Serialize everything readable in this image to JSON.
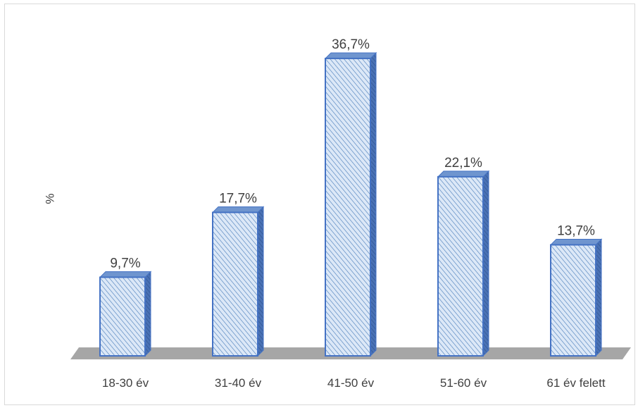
{
  "chart_data": {
    "type": "bar",
    "title": "",
    "xlabel": "",
    "ylabel": "%",
    "categories": [
      "18-30 év",
      "31-40 év",
      "41-50 év",
      "51-60 év",
      "61 év felett"
    ],
    "values": [
      9.7,
      17.7,
      36.7,
      22.1,
      13.7
    ],
    "data_labels": [
      "9,7%",
      "17,7%",
      "36,7%",
      "22,1%",
      "13,7%"
    ],
    "ylim": [
      0,
      40
    ],
    "grid": false,
    "legend": "none",
    "bar_style": "3d-column-hatched",
    "colors": {
      "bar_fill": "#dce8f7",
      "bar_hatch": "#4f81bd",
      "bar_edge": "#4472c4",
      "bar_top": "#6f95cf",
      "bar_side": "#3b64a8",
      "floor": "#a6a6a6",
      "text": "#404040",
      "frame": "#d9d9d9"
    }
  }
}
